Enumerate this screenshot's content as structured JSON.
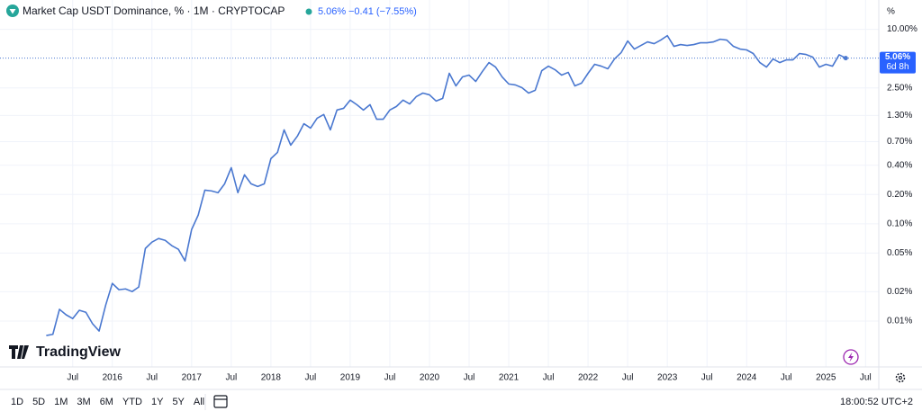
{
  "header": {
    "title": "Market Cap USDT Dominance, % · 1M · CRYPTOCAP",
    "last": "5.06%",
    "change": "−0.41 (−7.55%)"
  },
  "axis_unit": "%",
  "countdown": "6d 8h",
  "brand": "TradingView",
  "ranges": [
    "1D",
    "5D",
    "1M",
    "3M",
    "6M",
    "YTD",
    "1Y",
    "5Y",
    "All"
  ],
  "clock": "18:00:52 UTC+2",
  "chart_data": {
    "type": "line",
    "color": "#4a78d0",
    "grid": true,
    "ylog": true,
    "x": [
      "2015-03",
      "2015-04",
      "2015-05",
      "2015-06",
      "2015-07",
      "2015-08",
      "2015-09",
      "2015-10",
      "2015-11",
      "2015-12",
      "2016-01",
      "2016-02",
      "2016-03",
      "2016-04",
      "2016-05",
      "2016-06",
      "2016-07",
      "2016-08",
      "2016-09",
      "2016-10",
      "2016-11",
      "2016-12",
      "2017-01",
      "2017-02",
      "2017-03",
      "2017-04",
      "2017-05",
      "2017-06",
      "2017-07",
      "2017-08",
      "2017-09",
      "2017-10",
      "2017-11",
      "2017-12",
      "2018-01",
      "2018-02",
      "2018-03",
      "2018-04",
      "2018-05",
      "2018-06",
      "2018-07",
      "2018-08",
      "2018-09",
      "2018-10",
      "2018-11",
      "2018-12",
      "2019-01",
      "2019-02",
      "2019-03",
      "2019-04",
      "2019-05",
      "2019-06",
      "2019-07",
      "2019-08",
      "2019-09",
      "2019-10",
      "2019-11",
      "2019-12",
      "2020-01",
      "2020-02",
      "2020-03",
      "2020-04",
      "2020-05",
      "2020-06",
      "2020-07",
      "2020-08",
      "2020-09",
      "2020-10",
      "2020-11",
      "2020-12",
      "2021-01",
      "2021-02",
      "2021-03",
      "2021-04",
      "2021-05",
      "2021-06",
      "2021-07",
      "2021-08",
      "2021-09",
      "2021-10",
      "2021-11",
      "2021-12",
      "2022-01",
      "2022-02",
      "2022-03",
      "2022-04",
      "2022-05",
      "2022-06",
      "2022-07",
      "2022-08",
      "2022-09",
      "2022-10",
      "2022-11",
      "2022-12",
      "2023-01",
      "2023-02",
      "2023-03",
      "2023-04",
      "2023-05",
      "2023-06",
      "2023-07",
      "2023-08",
      "2023-09",
      "2023-10",
      "2023-11",
      "2023-12",
      "2024-01",
      "2024-02",
      "2024-03",
      "2024-04",
      "2024-05",
      "2024-06",
      "2024-07",
      "2024-08",
      "2024-09",
      "2024-10",
      "2024-11",
      "2024-12",
      "2025-01",
      "2025-02",
      "2025-03",
      "2025-04"
    ],
    "values": [
      0.0071,
      0.0073,
      0.0132,
      0.0116,
      0.0106,
      0.0129,
      0.0123,
      0.0094,
      0.0079,
      0.0146,
      0.0244,
      0.021,
      0.0214,
      0.0201,
      0.0224,
      0.0558,
      0.0649,
      0.0706,
      0.0676,
      0.0596,
      0.0547,
      0.0415,
      0.0873,
      0.123,
      0.222,
      0.218,
      0.209,
      0.258,
      0.378,
      0.209,
      0.319,
      0.258,
      0.242,
      0.258,
      0.468,
      0.543,
      0.925,
      0.644,
      0.796,
      1.07,
      0.964,
      1.22,
      1.33,
      0.925,
      1.48,
      1.54,
      1.87,
      1.68,
      1.48,
      1.68,
      1.19,
      1.19,
      1.48,
      1.61,
      1.87,
      1.71,
      2.03,
      2.21,
      2.12,
      1.83,
      1.95,
      3.53,
      2.62,
      3.24,
      3.38,
      2.91,
      3.68,
      4.55,
      4.09,
      3.24,
      2.74,
      2.68,
      2.51,
      2.21,
      2.36,
      3.76,
      4.18,
      3.84,
      3.38,
      3.61,
      2.62,
      2.79,
      3.53,
      4.37,
      4.18,
      3.93,
      4.96,
      5.75,
      7.59,
      6.27,
      6.82,
      7.43,
      7.12,
      7.75,
      8.61,
      6.68,
      6.97,
      6.82,
      6.97,
      7.27,
      7.27,
      7.43,
      7.91,
      7.75,
      6.68,
      6.27,
      6.14,
      5.64,
      4.55,
      4.09,
      4.96,
      4.55,
      4.85,
      4.85,
      5.64,
      5.51,
      5.18,
      4.09,
      4.37,
      4.18,
      5.47,
      5.06
    ],
    "xlim": [
      "2014-08",
      "2025-09"
    ],
    "xticks": [
      {
        "value": "2015-07",
        "label": "Jul"
      },
      {
        "value": "2016-01",
        "label": "2016"
      },
      {
        "value": "2016-07",
        "label": "Jul"
      },
      {
        "value": "2017-01",
        "label": "2017"
      },
      {
        "value": "2017-07",
        "label": "Jul"
      },
      {
        "value": "2018-01",
        "label": "2018"
      },
      {
        "value": "2018-07",
        "label": "Jul"
      },
      {
        "value": "2019-01",
        "label": "2019"
      },
      {
        "value": "2019-07",
        "label": "Jul"
      },
      {
        "value": "2020-01",
        "label": "2020"
      },
      {
        "value": "2020-07",
        "label": "Jul"
      },
      {
        "value": "2021-01",
        "label": "2021"
      },
      {
        "value": "2021-07",
        "label": "Jul"
      },
      {
        "value": "2022-01",
        "label": "2022"
      },
      {
        "value": "2022-07",
        "label": "Jul"
      },
      {
        "value": "2023-01",
        "label": "2023"
      },
      {
        "value": "2023-07",
        "label": "Jul"
      },
      {
        "value": "2024-01",
        "label": "2024"
      },
      {
        "value": "2024-07",
        "label": "Jul"
      },
      {
        "value": "2025-01",
        "label": "2025"
      },
      {
        "value": "2025-07",
        "label": "Jul"
      }
    ],
    "ylim": [
      0.004,
      18
    ],
    "yticks": [
      {
        "value": 10,
        "label": "10.00%"
      },
      {
        "value": 2.5,
        "label": "2.50%"
      },
      {
        "value": 1.3,
        "label": "1.30%"
      },
      {
        "value": 0.7,
        "label": "0.70%"
      },
      {
        "value": 0.4,
        "label": "0.40%"
      },
      {
        "value": 0.2,
        "label": "0.20%"
      },
      {
        "value": 0.1,
        "label": "0.10%"
      },
      {
        "value": 0.05,
        "label": "0.05%"
      },
      {
        "value": 0.02,
        "label": "0.02%"
      },
      {
        "value": 0.01,
        "label": "0.01%"
      }
    ]
  }
}
